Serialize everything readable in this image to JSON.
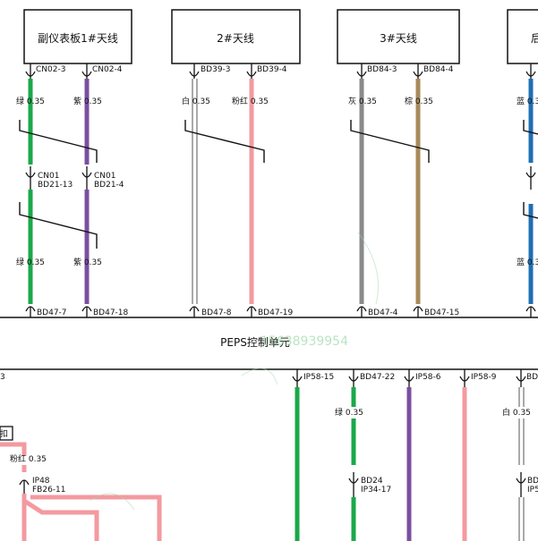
{
  "colors": {
    "green": "#1aa84a",
    "purple": "#7b4fa0",
    "pink": "#f39aa0",
    "gray": "#8a8a8a",
    "brown": "#a88a58",
    "blue": "#1f6fb4",
    "white_wire_outline": "#555555",
    "line": "#111111",
    "watermark": "#7fcf8f"
  },
  "modules": [
    {
      "title": "副仪表板1#天线"
    },
    {
      "title": "2#天线"
    },
    {
      "title": "3#天线"
    },
    {
      "title": "后"
    }
  ],
  "upper_wires": [
    {
      "top_pin": "CN02-3",
      "spec": "绿 0.35",
      "mid_pin_a": "CN01",
      "mid_pin_b": "BD21-13",
      "spec2": "绿 0.35",
      "bottom_pin": "BD47-7",
      "color": "green"
    },
    {
      "top_pin": "CN02-4",
      "spec": "紫 0.35",
      "mid_pin_a": "CN01",
      "mid_pin_b": "BD21-4",
      "spec2": "紫 0.35",
      "bottom_pin": "BD47-18",
      "color": "purple"
    },
    {
      "top_pin": "BD39-3",
      "spec": "白 0.35",
      "bottom_pin": "BD47-8",
      "color": "white"
    },
    {
      "top_pin": "BD39-4",
      "spec": "粉红 0.35",
      "bottom_pin": "BD47-19",
      "color": "pink"
    },
    {
      "top_pin": "BD84-3",
      "spec": "灰 0.35",
      "bottom_pin": "BD47-4",
      "color": "gray"
    },
    {
      "top_pin": "BD84-4",
      "spec": "棕 0.35",
      "bottom_pin": "BD47-15",
      "color": "brown"
    },
    {
      "spec": "蓝 0.35",
      "spec2": "蓝 0.35",
      "color": "blue"
    }
  ],
  "control_unit": {
    "title": "PEPS控制单元",
    "watermark": "15638939954"
  },
  "lower_wires": [
    {
      "top_pin": "IP58-15",
      "color": "green"
    },
    {
      "top_pin": "BD47-22",
      "spec": "绿 0.35",
      "mid_pin_a": "BD24",
      "mid_pin_b": "IP34-17",
      "color": "green"
    },
    {
      "top_pin": "IP58-6",
      "color": "purple"
    },
    {
      "top_pin": "IP58-9",
      "color": "pink"
    },
    {
      "top_pin": "BD",
      "spec": "白 0.35",
      "mid_pin_a": "BD",
      "mid_pin_b": "IP5",
      "color": "white"
    }
  ],
  "lower_left": {
    "edge_pin": "3",
    "edge_label": "扣",
    "spec": "粉红 0.35",
    "pin_a": "IP48",
    "pin_b": "FB26-11"
  }
}
